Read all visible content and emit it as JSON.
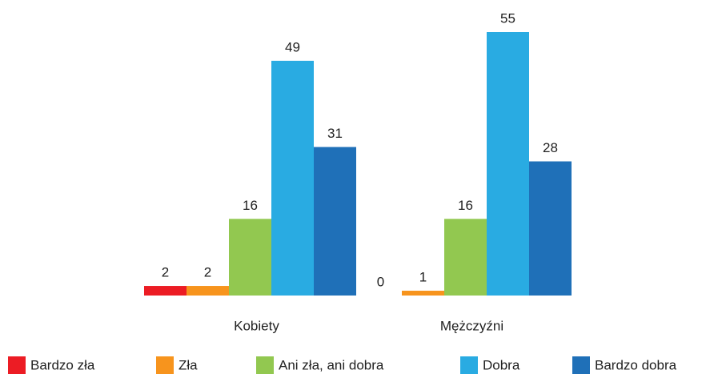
{
  "chart_data": {
    "type": "bar",
    "categories": [
      "Kobiety",
      "Mężczyźni"
    ],
    "series": [
      {
        "name": "Bardzo zła",
        "color": "#ec1c24",
        "values": [
          2,
          0
        ]
      },
      {
        "name": "Zła",
        "color": "#f7941d",
        "values": [
          2,
          1
        ]
      },
      {
        "name": "Ani zła, ani dobra",
        "color": "#92c850",
        "values": [
          16,
          16
        ]
      },
      {
        "name": "Dobra",
        "color": "#29abe2",
        "values": [
          49,
          55
        ]
      },
      {
        "name": "Bardzo dobra",
        "color": "#1f70b8",
        "values": [
          31,
          28
        ]
      }
    ]
  }
}
